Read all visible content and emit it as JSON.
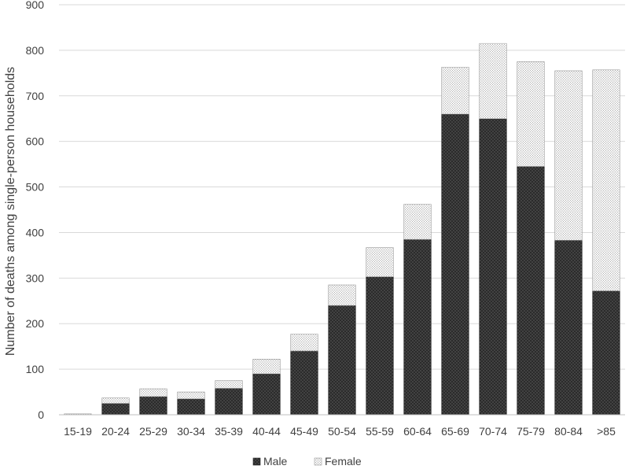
{
  "chart_data": {
    "type": "bar",
    "stacked": true,
    "ylabel": "Number of deaths among single-person households",
    "xlabel": "",
    "ylim": [
      0,
      900
    ],
    "yticks": [
      0,
      100,
      200,
      300,
      400,
      500,
      600,
      700,
      800,
      900
    ],
    "grid": true,
    "legend": "bottom",
    "categories": [
      "15-19",
      "20-24",
      "25-29",
      "30-34",
      "35-39",
      "40-44",
      "45-49",
      "50-54",
      "55-59",
      "60-64",
      "65-69",
      "70-74",
      "75-79",
      "80-84",
      ">85"
    ],
    "series": [
      {
        "name": "Male",
        "values": [
          0,
          25,
          40,
          35,
          58,
          90,
          140,
          240,
          303,
          385,
          660,
          650,
          545,
          383,
          272
        ],
        "color": "#3a3a3a"
      },
      {
        "name": "Female",
        "values": [
          2,
          12,
          17,
          15,
          17,
          32,
          37,
          45,
          64,
          77,
          103,
          165,
          230,
          372,
          485
        ],
        "color": "#d9d9d9"
      }
    ]
  }
}
